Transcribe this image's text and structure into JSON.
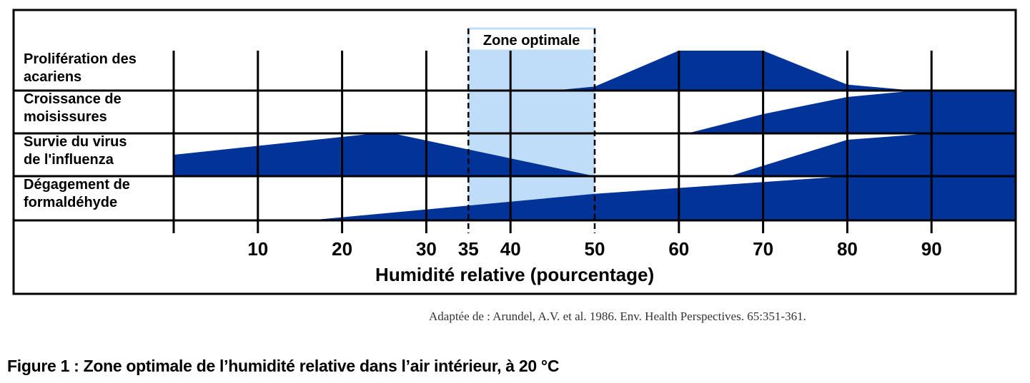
{
  "chart_data": {
    "type": "area",
    "xlabel": "Humidité relative (pourcentage)",
    "xlim": [
      0,
      100
    ],
    "xticks": [
      10,
      20,
      30,
      35,
      40,
      50,
      60,
      70,
      80,
      90
    ],
    "gridlines_x": [
      0,
      10,
      20,
      30,
      40,
      60,
      70,
      80,
      90
    ],
    "optimal_zone": {
      "label": "Zone optimale",
      "range": [
        35,
        50
      ],
      "color": "#BFDDF9"
    },
    "fill_color": "#023399",
    "rows": [
      {
        "name": "Prolifération des acariens",
        "lines": [
          "Prolifération des",
          "acariens"
        ],
        "points": [
          [
            45,
            0
          ],
          [
            50,
            0.1
          ],
          [
            60,
            1
          ],
          [
            70,
            1
          ],
          [
            80,
            0.15
          ],
          [
            88,
            0
          ],
          [
            100,
            0
          ]
        ]
      },
      {
        "name": "Croissance de moisissures",
        "lines": [
          "Croissance de",
          "moisissures"
        ],
        "points": [
          [
            61,
            0
          ],
          [
            70,
            0.45
          ],
          [
            80,
            0.85
          ],
          [
            88,
            1
          ],
          [
            100,
            1
          ]
        ]
      },
      {
        "name": "Survie du virus de l'influenza",
        "lines": [
          "Survie du virus",
          "de l'influenza"
        ],
        "points": [
          [
            0,
            0.5
          ],
          [
            24,
            1
          ],
          [
            26,
            1
          ],
          [
            50,
            0
          ],
          [
            66,
            0
          ],
          [
            80,
            0.85
          ],
          [
            90,
            1
          ],
          [
            100,
            1
          ]
        ]
      },
      {
        "name": "Dégagement de formaldéhyde",
        "lines": [
          "Dégagement de",
          "formaldéhyde"
        ],
        "points": [
          [
            16,
            0
          ],
          [
            50,
            0.6
          ],
          [
            80,
            1
          ],
          [
            100,
            1
          ]
        ]
      }
    ]
  },
  "source": "Adaptée de : Arundel, A.V. et al. 1986. Env. Health Perspectives. 65:351-361.",
  "caption": "Figure 1 : Zone optimale de l’humidité relative dans l’air intérieur, à 20 °C"
}
